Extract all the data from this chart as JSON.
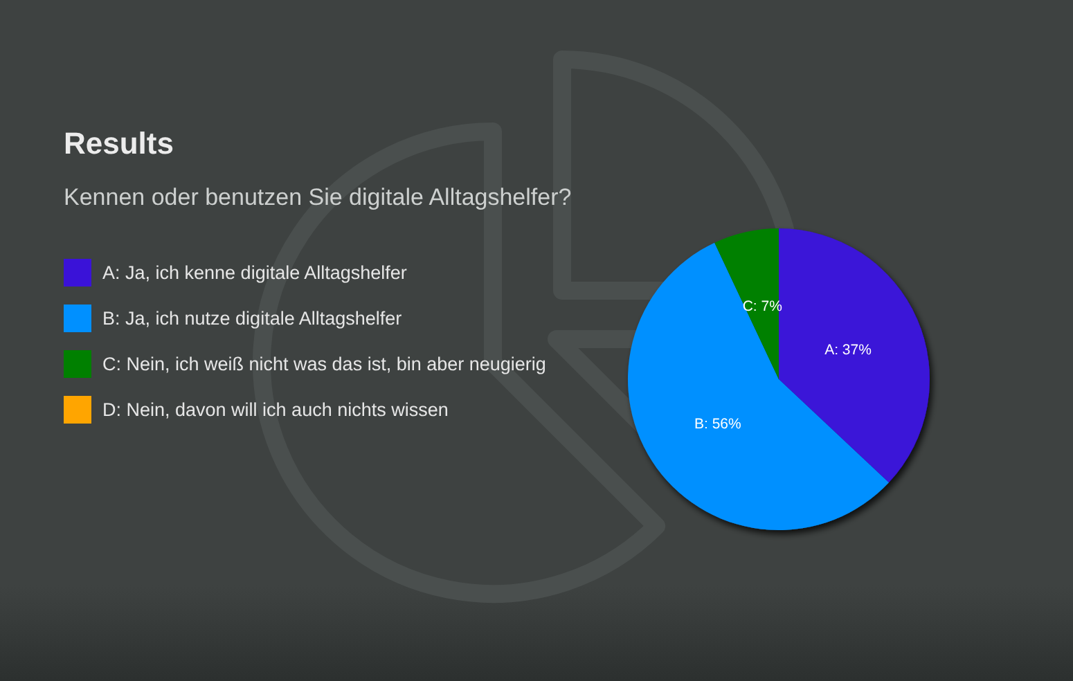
{
  "chart_data": {
    "type": "pie",
    "title": "Results",
    "subtitle": "Kennen oder benutzen Sie digitale Alltagshelfer?",
    "categories": [
      "A: Ja, ich kenne digitale Alltagshelfer",
      "B: Ja, ich nutze digitale Alltagshelfer",
      "C: Nein, ich weiß nicht was das ist, bin aber neugierig",
      "D: Nein, davon will ich auch nichts wissen"
    ],
    "values": [
      37,
      56,
      7,
      0
    ],
    "colors": [
      "#3a12d8",
      "#0090ff",
      "#008000",
      "#ffa500"
    ],
    "value_labels": [
      "A: 37%",
      "B: 56%",
      "C: 7%",
      null
    ],
    "legend": "left"
  }
}
